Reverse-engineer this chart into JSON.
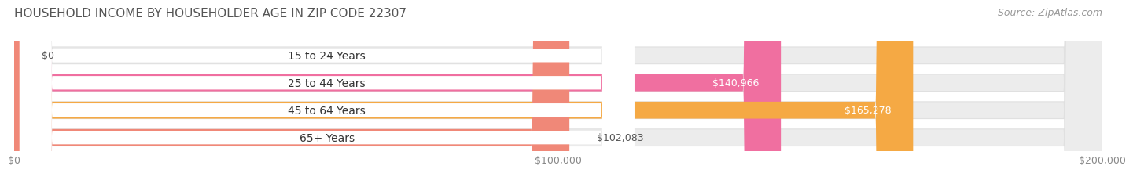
{
  "title": "HOUSEHOLD INCOME BY HOUSEHOLDER AGE IN ZIP CODE 22307",
  "source": "Source: ZipAtlas.com",
  "categories": [
    "15 to 24 Years",
    "25 to 44 Years",
    "45 to 64 Years",
    "65+ Years"
  ],
  "values": [
    0,
    140966,
    165278,
    102083
  ],
  "bar_colors": [
    "#a8a8d8",
    "#f06fa0",
    "#f5a944",
    "#f08878"
  ],
  "label_colors": [
    "#555555",
    "#ffffff",
    "#ffffff",
    "#555555"
  ],
  "value_labels": [
    "$0",
    "$140,966",
    "$165,278",
    "$102,083"
  ],
  "xlim": [
    0,
    200000
  ],
  "xticks": [
    0,
    100000,
    200000
  ],
  "xtick_labels": [
    "$0",
    "$100,000",
    "$200,000"
  ],
  "title_fontsize": 11,
  "source_fontsize": 9,
  "label_fontsize": 10,
  "value_fontsize": 9,
  "tick_fontsize": 9,
  "background_color": "#ffffff"
}
